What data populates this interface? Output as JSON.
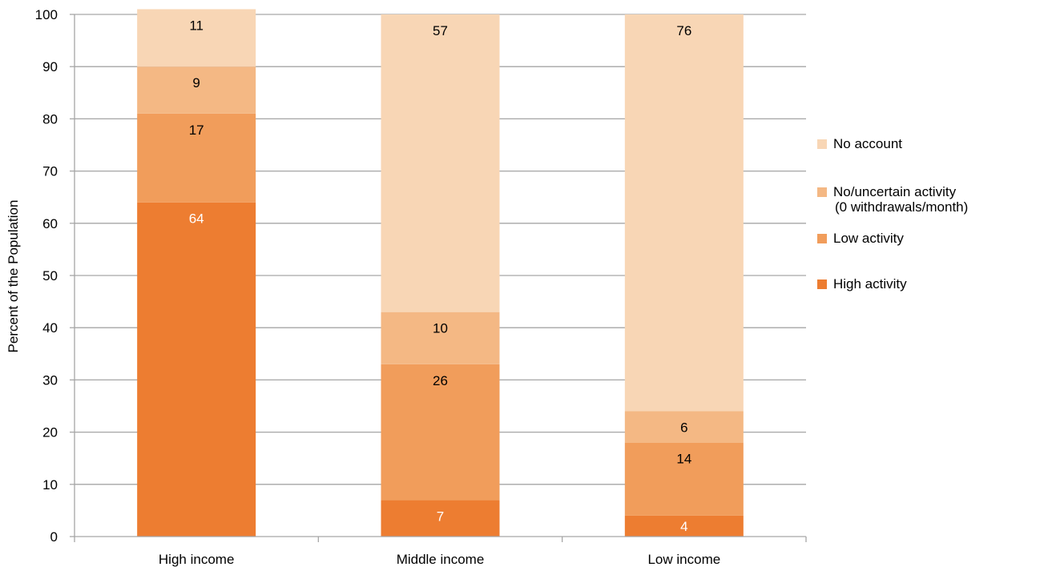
{
  "chart_data": {
    "type": "bar",
    "stacked": true,
    "categories": [
      "High income",
      "Middle income",
      "Low income"
    ],
    "series": [
      {
        "name": "High activity",
        "values": [
          64,
          7,
          4
        ],
        "color": "#ed7d31"
      },
      {
        "name": "Low activity",
        "values": [
          17,
          26,
          14
        ],
        "color": "#f19d5b"
      },
      {
        "name": "No/uncertain activity\n(0 withdrawals/month)",
        "values": [
          9,
          10,
          6
        ],
        "color": "#f4b884"
      },
      {
        "name": "No account",
        "values": [
          11,
          57,
          76
        ],
        "color": "#f8d6b5"
      }
    ],
    "data_labels": [
      [
        "64",
        "7",
        "4"
      ],
      [
        "17",
        "26",
        "14"
      ],
      [
        "9",
        "10",
        "6"
      ],
      [
        "11",
        "57",
        "76"
      ]
    ],
    "label_colors": [
      "#ffffff",
      "#000000",
      "#000000",
      "#000000"
    ],
    "ylabel": "Percent of the Population",
    "xlabel": "",
    "ylim": [
      0,
      100
    ],
    "yticks": [
      0,
      10,
      20,
      30,
      40,
      50,
      60,
      70,
      80,
      90,
      100
    ],
    "grid": true,
    "legend_position": "right",
    "legend_order": [
      "No account",
      "No/uncertain activity\n(0 withdrawals/month)",
      "Low activity",
      "High activity"
    ]
  }
}
